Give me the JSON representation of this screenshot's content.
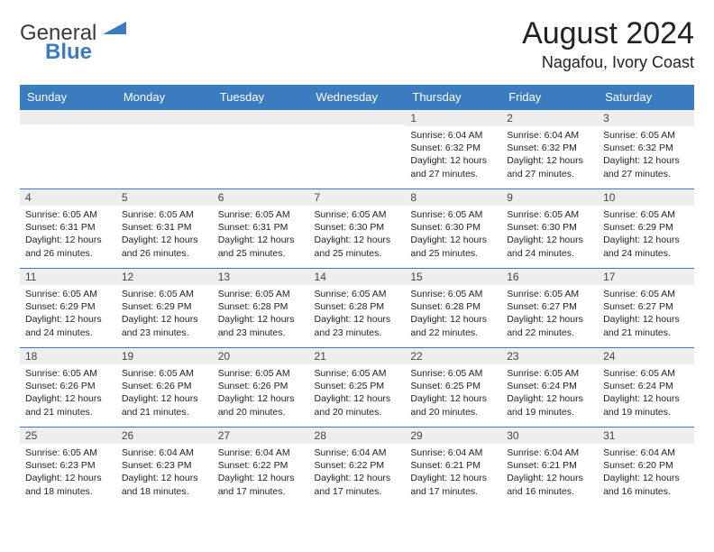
{
  "logo": {
    "general": "General",
    "blue": "Blue"
  },
  "title": "August 2024",
  "location": "Nagafou, Ivory Coast",
  "colors": {
    "header_bg": "#3b7bbf",
    "header_text": "#ffffff",
    "daynum_bg": "#eeeeee",
    "cell_border": "#3b7bbf",
    "text": "#222222"
  },
  "weekdays": [
    "Sunday",
    "Monday",
    "Tuesday",
    "Wednesday",
    "Thursday",
    "Friday",
    "Saturday"
  ],
  "weeks": [
    [
      {
        "n": "",
        "sr": "",
        "ss": "",
        "dl": ""
      },
      {
        "n": "",
        "sr": "",
        "ss": "",
        "dl": ""
      },
      {
        "n": "",
        "sr": "",
        "ss": "",
        "dl": ""
      },
      {
        "n": "",
        "sr": "",
        "ss": "",
        "dl": ""
      },
      {
        "n": "1",
        "sr": "6:04 AM",
        "ss": "6:32 PM",
        "dl": "12 hours and 27 minutes."
      },
      {
        "n": "2",
        "sr": "6:04 AM",
        "ss": "6:32 PM",
        "dl": "12 hours and 27 minutes."
      },
      {
        "n": "3",
        "sr": "6:05 AM",
        "ss": "6:32 PM",
        "dl": "12 hours and 27 minutes."
      }
    ],
    [
      {
        "n": "4",
        "sr": "6:05 AM",
        "ss": "6:31 PM",
        "dl": "12 hours and 26 minutes."
      },
      {
        "n": "5",
        "sr": "6:05 AM",
        "ss": "6:31 PM",
        "dl": "12 hours and 26 minutes."
      },
      {
        "n": "6",
        "sr": "6:05 AM",
        "ss": "6:31 PM",
        "dl": "12 hours and 25 minutes."
      },
      {
        "n": "7",
        "sr": "6:05 AM",
        "ss": "6:30 PM",
        "dl": "12 hours and 25 minutes."
      },
      {
        "n": "8",
        "sr": "6:05 AM",
        "ss": "6:30 PM",
        "dl": "12 hours and 25 minutes."
      },
      {
        "n": "9",
        "sr": "6:05 AM",
        "ss": "6:30 PM",
        "dl": "12 hours and 24 minutes."
      },
      {
        "n": "10",
        "sr": "6:05 AM",
        "ss": "6:29 PM",
        "dl": "12 hours and 24 minutes."
      }
    ],
    [
      {
        "n": "11",
        "sr": "6:05 AM",
        "ss": "6:29 PM",
        "dl": "12 hours and 24 minutes."
      },
      {
        "n": "12",
        "sr": "6:05 AM",
        "ss": "6:29 PM",
        "dl": "12 hours and 23 minutes."
      },
      {
        "n": "13",
        "sr": "6:05 AM",
        "ss": "6:28 PM",
        "dl": "12 hours and 23 minutes."
      },
      {
        "n": "14",
        "sr": "6:05 AM",
        "ss": "6:28 PM",
        "dl": "12 hours and 23 minutes."
      },
      {
        "n": "15",
        "sr": "6:05 AM",
        "ss": "6:28 PM",
        "dl": "12 hours and 22 minutes."
      },
      {
        "n": "16",
        "sr": "6:05 AM",
        "ss": "6:27 PM",
        "dl": "12 hours and 22 minutes."
      },
      {
        "n": "17",
        "sr": "6:05 AM",
        "ss": "6:27 PM",
        "dl": "12 hours and 21 minutes."
      }
    ],
    [
      {
        "n": "18",
        "sr": "6:05 AM",
        "ss": "6:26 PM",
        "dl": "12 hours and 21 minutes."
      },
      {
        "n": "19",
        "sr": "6:05 AM",
        "ss": "6:26 PM",
        "dl": "12 hours and 21 minutes."
      },
      {
        "n": "20",
        "sr": "6:05 AM",
        "ss": "6:26 PM",
        "dl": "12 hours and 20 minutes."
      },
      {
        "n": "21",
        "sr": "6:05 AM",
        "ss": "6:25 PM",
        "dl": "12 hours and 20 minutes."
      },
      {
        "n": "22",
        "sr": "6:05 AM",
        "ss": "6:25 PM",
        "dl": "12 hours and 20 minutes."
      },
      {
        "n": "23",
        "sr": "6:05 AM",
        "ss": "6:24 PM",
        "dl": "12 hours and 19 minutes."
      },
      {
        "n": "24",
        "sr": "6:05 AM",
        "ss": "6:24 PM",
        "dl": "12 hours and 19 minutes."
      }
    ],
    [
      {
        "n": "25",
        "sr": "6:05 AM",
        "ss": "6:23 PM",
        "dl": "12 hours and 18 minutes."
      },
      {
        "n": "26",
        "sr": "6:04 AM",
        "ss": "6:23 PM",
        "dl": "12 hours and 18 minutes."
      },
      {
        "n": "27",
        "sr": "6:04 AM",
        "ss": "6:22 PM",
        "dl": "12 hours and 17 minutes."
      },
      {
        "n": "28",
        "sr": "6:04 AM",
        "ss": "6:22 PM",
        "dl": "12 hours and 17 minutes."
      },
      {
        "n": "29",
        "sr": "6:04 AM",
        "ss": "6:21 PM",
        "dl": "12 hours and 17 minutes."
      },
      {
        "n": "30",
        "sr": "6:04 AM",
        "ss": "6:21 PM",
        "dl": "12 hours and 16 minutes."
      },
      {
        "n": "31",
        "sr": "6:04 AM",
        "ss": "6:20 PM",
        "dl": "12 hours and 16 minutes."
      }
    ]
  ],
  "labels": {
    "sunrise": "Sunrise:",
    "sunset": "Sunset:",
    "daylight": "Daylight:"
  }
}
